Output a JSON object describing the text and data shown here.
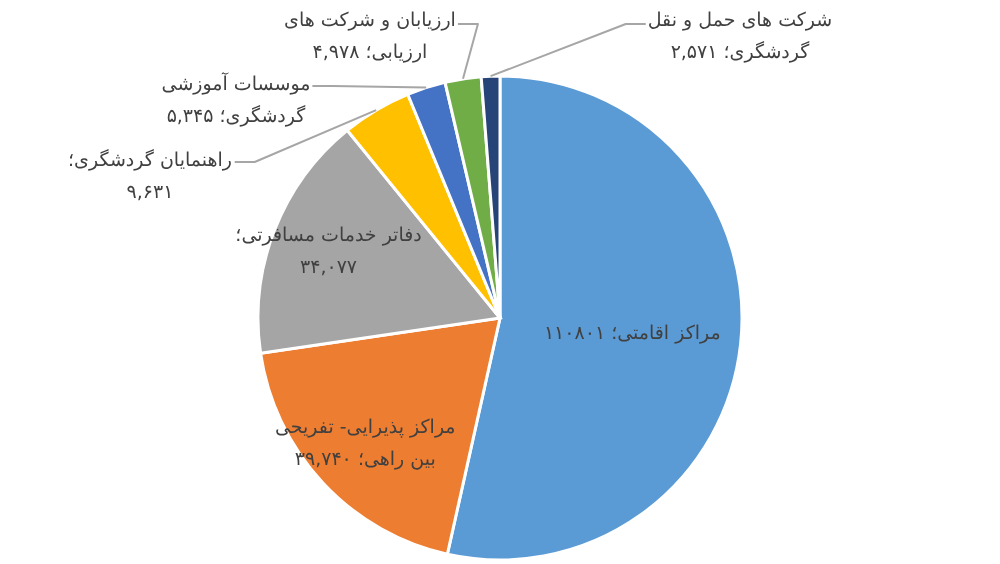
{
  "chart_data": {
    "type": "pie",
    "categories": [
      "مراکز اقامتی؛",
      "مراکز پذیرایی- تفریحی بین راهی؛",
      "دفاتر خدمات مسافرتی؛",
      "راهنمایان گردشگری؛",
      "موسسات آموزشی گردشگری؛",
      "ارزیابان و شرکت های ارزیابی؛",
      "شرکت های حمل و نقل گردشگری؛"
    ],
    "values": [
      110801,
      39740,
      34077,
      9631,
      5345,
      4978,
      2571
    ],
    "value_labels": [
      "۱۱۰۸۰۱",
      "۳۹,۷۴۰",
      "۳۴,۰۷۷",
      "۹,۶۳۱",
      "۵,۳۴۵",
      "۴,۹۷۸",
      "۲,۵۷۱"
    ],
    "colors": [
      "#5b9bd5",
      "#ed7d31",
      "#a5a5a5",
      "#ffc000",
      "#4472c4",
      "#70ad47",
      "#264478"
    ]
  }
}
